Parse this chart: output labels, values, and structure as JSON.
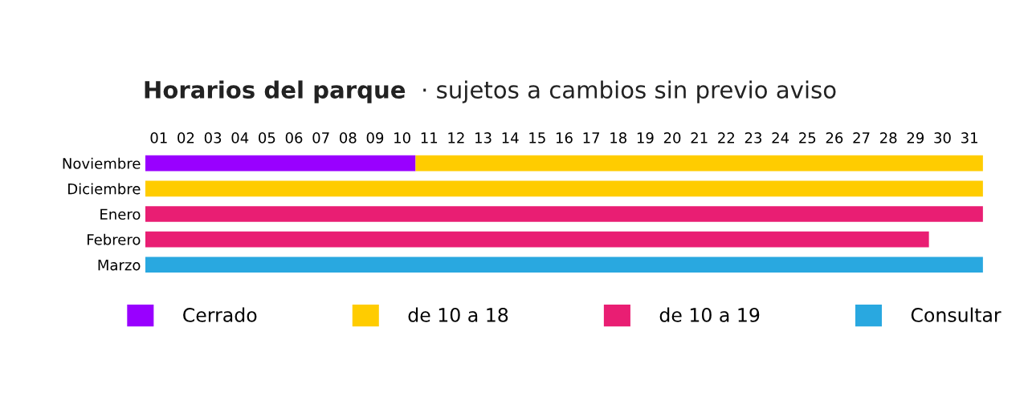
{
  "chart_data": {
    "type": "bar",
    "orientation": "horizontal",
    "stacked": true,
    "title": "Horarios del parque",
    "subtitle": "· sujetos a cambios sin previo aviso",
    "categories": [
      "Noviembre",
      "Diciembre",
      "Enero",
      "Febrero",
      "Marzo"
    ],
    "series": [
      {
        "name": "Cerrado",
        "color": "#9900ff",
        "values": [
          10,
          null,
          null,
          null,
          null
        ]
      },
      {
        "name": "de 10 a 18",
        "color": "#ffcc00",
        "values": [
          21,
          31,
          null,
          null,
          null
        ]
      },
      {
        "name": "de 10 a 19",
        "color": "#e91e73",
        "values": [
          null,
          null,
          31,
          29,
          null
        ]
      },
      {
        "name": "Consultar",
        "color": "#29a8e0",
        "values": [
          null,
          null,
          null,
          null,
          31
        ]
      }
    ],
    "xlim": [
      0,
      31
    ],
    "xticks": [
      {
        "value": 0.5,
        "label": "01"
      },
      {
        "value": 1.5,
        "label": "02"
      },
      {
        "value": 2.5,
        "label": "03"
      },
      {
        "value": 3.5,
        "label": "04"
      },
      {
        "value": 4.5,
        "label": "05"
      },
      {
        "value": 5.5,
        "label": "06"
      },
      {
        "value": 6.5,
        "label": "07"
      },
      {
        "value": 7.5,
        "label": "08"
      },
      {
        "value": 8.5,
        "label": "09"
      },
      {
        "value": 9.5,
        "label": "10"
      },
      {
        "value": 10.5,
        "label": "11"
      },
      {
        "value": 11.5,
        "label": "12"
      },
      {
        "value": 12.5,
        "label": "13"
      },
      {
        "value": 13.5,
        "label": "14"
      },
      {
        "value": 14.5,
        "label": "15"
      },
      {
        "value": 15.5,
        "label": "16"
      },
      {
        "value": 16.5,
        "label": "17"
      },
      {
        "value": 17.5,
        "label": "18"
      },
      {
        "value": 18.5,
        "label": "19"
      },
      {
        "value": 19.5,
        "label": "20"
      },
      {
        "value": 20.5,
        "label": "21"
      },
      {
        "value": 21.5,
        "label": "22"
      },
      {
        "value": 22.5,
        "label": "23"
      },
      {
        "value": 23.5,
        "label": "24"
      },
      {
        "value": 24.5,
        "label": "25"
      },
      {
        "value": 25.5,
        "label": "26"
      },
      {
        "value": 26.5,
        "label": "27"
      },
      {
        "value": 27.5,
        "label": "28"
      },
      {
        "value": 28.5,
        "label": "29"
      },
      {
        "value": 29.5,
        "label": "30"
      },
      {
        "value": 30.5,
        "label": "31"
      }
    ],
    "grid": false,
    "legend": "bottom"
  }
}
